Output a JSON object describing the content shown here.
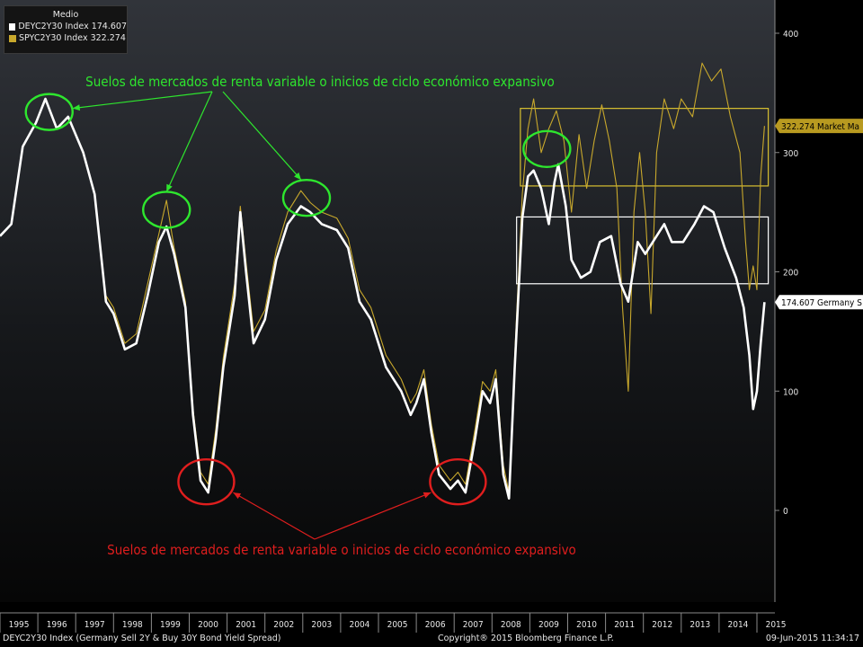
{
  "chart_data": {
    "type": "line",
    "ylim": [
      -75,
      400
    ],
    "y_ticks": [
      0,
      100,
      200,
      300,
      400
    ],
    "x_ticks": [
      "1995",
      "1996",
      "1997",
      "1998",
      "1999",
      "2000",
      "2001",
      "2002",
      "2003",
      "2004",
      "2005",
      "2006",
      "2007",
      "2008",
      "2009",
      "2010",
      "2011",
      "2012",
      "2013",
      "2014",
      "2015"
    ],
    "grid": false,
    "legend_position": "top-left",
    "legend_title": "Medio",
    "series": [
      {
        "name": "DEYC2Y30 Index 174.607",
        "color": "#ffffff",
        "end_value": 174.607,
        "end_label": "174.607 Germany S",
        "points": [
          [
            1995.0,
            230
          ],
          [
            1995.3,
            240
          ],
          [
            1995.6,
            305
          ],
          [
            1995.95,
            325
          ],
          [
            1996.2,
            345
          ],
          [
            1996.5,
            320
          ],
          [
            1996.8,
            330
          ],
          [
            1997.2,
            300
          ],
          [
            1997.5,
            265
          ],
          [
            1997.8,
            175
          ],
          [
            1998.0,
            165
          ],
          [
            1998.3,
            135
          ],
          [
            1998.6,
            140
          ],
          [
            1998.9,
            180
          ],
          [
            1999.2,
            225
          ],
          [
            1999.4,
            238
          ],
          [
            1999.6,
            215
          ],
          [
            1999.9,
            170
          ],
          [
            2000.1,
            80
          ],
          [
            2000.3,
            25
          ],
          [
            2000.5,
            15
          ],
          [
            2000.7,
            60
          ],
          [
            2000.9,
            120
          ],
          [
            2001.2,
            180
          ],
          [
            2001.35,
            250
          ],
          [
            2001.5,
            200
          ],
          [
            2001.7,
            140
          ],
          [
            2002.0,
            160
          ],
          [
            2002.3,
            210
          ],
          [
            2002.6,
            240
          ],
          [
            2002.95,
            255
          ],
          [
            2003.2,
            250
          ],
          [
            2003.5,
            240
          ],
          [
            2003.9,
            235
          ],
          [
            2004.2,
            220
          ],
          [
            2004.5,
            175
          ],
          [
            2004.8,
            160
          ],
          [
            2005.2,
            120
          ],
          [
            2005.6,
            100
          ],
          [
            2005.85,
            80
          ],
          [
            2006.0,
            90
          ],
          [
            2006.2,
            110
          ],
          [
            2006.4,
            65
          ],
          [
            2006.6,
            30
          ],
          [
            2006.9,
            18
          ],
          [
            2007.1,
            25
          ],
          [
            2007.3,
            15
          ],
          [
            2007.55,
            60
          ],
          [
            2007.75,
            100
          ],
          [
            2007.95,
            90
          ],
          [
            2008.1,
            110
          ],
          [
            2008.3,
            30
          ],
          [
            2008.45,
            10
          ],
          [
            2008.6,
            120
          ],
          [
            2008.8,
            245
          ],
          [
            2008.95,
            280
          ],
          [
            2009.1,
            285
          ],
          [
            2009.3,
            270
          ],
          [
            2009.5,
            240
          ],
          [
            2009.65,
            275
          ],
          [
            2009.75,
            290
          ],
          [
            2009.95,
            255
          ],
          [
            2010.1,
            210
          ],
          [
            2010.35,
            195
          ],
          [
            2010.6,
            200
          ],
          [
            2010.85,
            225
          ],
          [
            2011.15,
            230
          ],
          [
            2011.4,
            190
          ],
          [
            2011.6,
            175
          ],
          [
            2011.85,
            225
          ],
          [
            2012.05,
            215
          ],
          [
            2012.35,
            230
          ],
          [
            2012.55,
            240
          ],
          [
            2012.75,
            225
          ],
          [
            2013.05,
            225
          ],
          [
            2013.35,
            240
          ],
          [
            2013.6,
            255
          ],
          [
            2013.85,
            250
          ],
          [
            2014.15,
            220
          ],
          [
            2014.45,
            195
          ],
          [
            2014.65,
            170
          ],
          [
            2014.8,
            130
          ],
          [
            2014.9,
            85
          ],
          [
            2015.0,
            100
          ],
          [
            2015.1,
            140
          ],
          [
            2015.2,
            174.607
          ]
        ]
      },
      {
        "name": "SPYC2Y30 Index 322.274",
        "color": "#c8a82c",
        "end_value": 322.274,
        "end_label": "322.274 Market Ma",
        "points": [
          [
            1997.8,
            180
          ],
          [
            1998.0,
            170
          ],
          [
            1998.3,
            140
          ],
          [
            1998.6,
            148
          ],
          [
            1998.9,
            190
          ],
          [
            1999.2,
            232
          ],
          [
            1999.4,
            260
          ],
          [
            1999.6,
            220
          ],
          [
            1999.9,
            175
          ],
          [
            2000.1,
            85
          ],
          [
            2000.3,
            32
          ],
          [
            2000.5,
            22
          ],
          [
            2000.7,
            68
          ],
          [
            2000.9,
            128
          ],
          [
            2001.2,
            190
          ],
          [
            2001.35,
            255
          ],
          [
            2001.5,
            208
          ],
          [
            2001.7,
            150
          ],
          [
            2002.0,
            168
          ],
          [
            2002.3,
            218
          ],
          [
            2002.6,
            250
          ],
          [
            2002.95,
            268
          ],
          [
            2003.2,
            258
          ],
          [
            2003.5,
            250
          ],
          [
            2003.9,
            245
          ],
          [
            2004.2,
            228
          ],
          [
            2004.5,
            185
          ],
          [
            2004.8,
            170
          ],
          [
            2005.2,
            130
          ],
          [
            2005.6,
            110
          ],
          [
            2005.85,
            90
          ],
          [
            2006.0,
            98
          ],
          [
            2006.2,
            118
          ],
          [
            2006.4,
            72
          ],
          [
            2006.6,
            38
          ],
          [
            2006.9,
            25
          ],
          [
            2007.1,
            32
          ],
          [
            2007.3,
            22
          ],
          [
            2007.55,
            68
          ],
          [
            2007.75,
            108
          ],
          [
            2007.95,
            100
          ],
          [
            2008.1,
            118
          ],
          [
            2008.3,
            38
          ],
          [
            2008.45,
            15
          ],
          [
            2008.6,
            130
          ],
          [
            2008.8,
            265
          ],
          [
            2008.95,
            320
          ],
          [
            2009.1,
            345
          ],
          [
            2009.3,
            300
          ],
          [
            2009.5,
            320
          ],
          [
            2009.7,
            335
          ],
          [
            2009.9,
            310
          ],
          [
            2010.1,
            250
          ],
          [
            2010.3,
            315
          ],
          [
            2010.5,
            270
          ],
          [
            2010.7,
            310
          ],
          [
            2010.9,
            340
          ],
          [
            2011.1,
            310
          ],
          [
            2011.3,
            270
          ],
          [
            2011.45,
            170
          ],
          [
            2011.6,
            100
          ],
          [
            2011.75,
            250
          ],
          [
            2011.9,
            300
          ],
          [
            2012.05,
            250
          ],
          [
            2012.2,
            165
          ],
          [
            2012.35,
            300
          ],
          [
            2012.55,
            345
          ],
          [
            2012.8,
            320
          ],
          [
            2013.0,
            345
          ],
          [
            2013.3,
            330
          ],
          [
            2013.55,
            375
          ],
          [
            2013.8,
            360
          ],
          [
            2014.05,
            370
          ],
          [
            2014.3,
            330
          ],
          [
            2014.55,
            300
          ],
          [
            2014.7,
            225
          ],
          [
            2014.8,
            185
          ],
          [
            2014.9,
            205
          ],
          [
            2015.0,
            185
          ],
          [
            2015.1,
            280
          ],
          [
            2015.2,
            322.274
          ]
        ]
      }
    ],
    "annotations": {
      "green_text": "Suelos de mercados de renta variable o inicios de ciclo económico expansivo",
      "red_text": "Suelos de mercados de renta variable o inicios de ciclo económico expansivo",
      "green_color": "#2ee62e",
      "red_color": "#e01e1e",
      "box_yellow_color": "#d8c030",
      "box_white_color": "#ffffff",
      "green_circles": [
        [
          1996.3,
          334
        ],
        [
          1999.4,
          252
        ],
        [
          2003.1,
          262
        ],
        [
          2009.45,
          303
        ]
      ],
      "red_circles": [
        [
          2000.45,
          24
        ],
        [
          2007.1,
          24
        ]
      ],
      "yellow_box": {
        "x0": 2008.75,
        "x1": 2015.3,
        "y0": 272,
        "y1": 337
      },
      "white_box": {
        "x0": 2008.65,
        "x1": 2015.3,
        "y0": 190,
        "y1": 246
      }
    }
  },
  "legend": {
    "title": "Medio",
    "items": [
      {
        "label": "DEYC2Y30 Index 174.607",
        "color": "#ffffff"
      },
      {
        "label": "SPYC2Y30 Index 322.274",
        "color": "#c8a82c"
      }
    ]
  },
  "footer": {
    "left": "DEYC2Y30 Index (Germany Sell 2Y & Buy 30Y Bond Yield Spread)",
    "center": "Copyright® 2015 Bloomberg Finance L.P.",
    "right": "09-Jun-2015 11:34:17"
  }
}
